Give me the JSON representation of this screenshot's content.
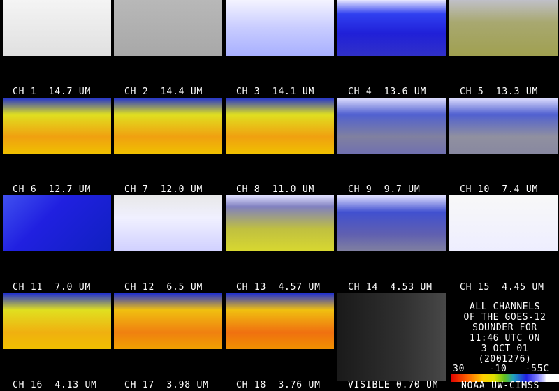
{
  "panels": [
    {
      "label": "CH 1  14.7 UM"
    },
    {
      "label": "CH 2  14.4 UM"
    },
    {
      "label": "CH 3  14.1 UM"
    },
    {
      "label": "CH 4  13.6 UM"
    },
    {
      "label": "CH 5  13.3 UM"
    },
    {
      "label": "CH 6  12.7 UM"
    },
    {
      "label": "CH 7  12.0 UM"
    },
    {
      "label": "CH 8  11.0 UM"
    },
    {
      "label": "CH 9  9.7 UM"
    },
    {
      "label": "CH 10  7.4 UM"
    },
    {
      "label": "CH 11  7.0 UM"
    },
    {
      "label": "CH 12  6.5 UM"
    },
    {
      "label": "CH 13  4.57 UM"
    },
    {
      "label": "CH 14  4.53 UM"
    },
    {
      "label": "CH 15  4.45 UM"
    },
    {
      "label": "CH 16  4.13 UM"
    },
    {
      "label": "CH 17  3.98 UM"
    },
    {
      "label": "CH 18  3.76 UM"
    },
    {
      "label": "VISIBLE 0.70 UM"
    }
  ],
  "info": {
    "lines": [
      "ALL CHANNELS",
      "OF THE GOES-12",
      "SOUNDER FOR",
      "11:46 UTC ON",
      "3 OCT 01",
      "(2001276)"
    ],
    "scale_labels": "30    -10   -55C",
    "credit": "NOAA UW-CIMSS"
  }
}
